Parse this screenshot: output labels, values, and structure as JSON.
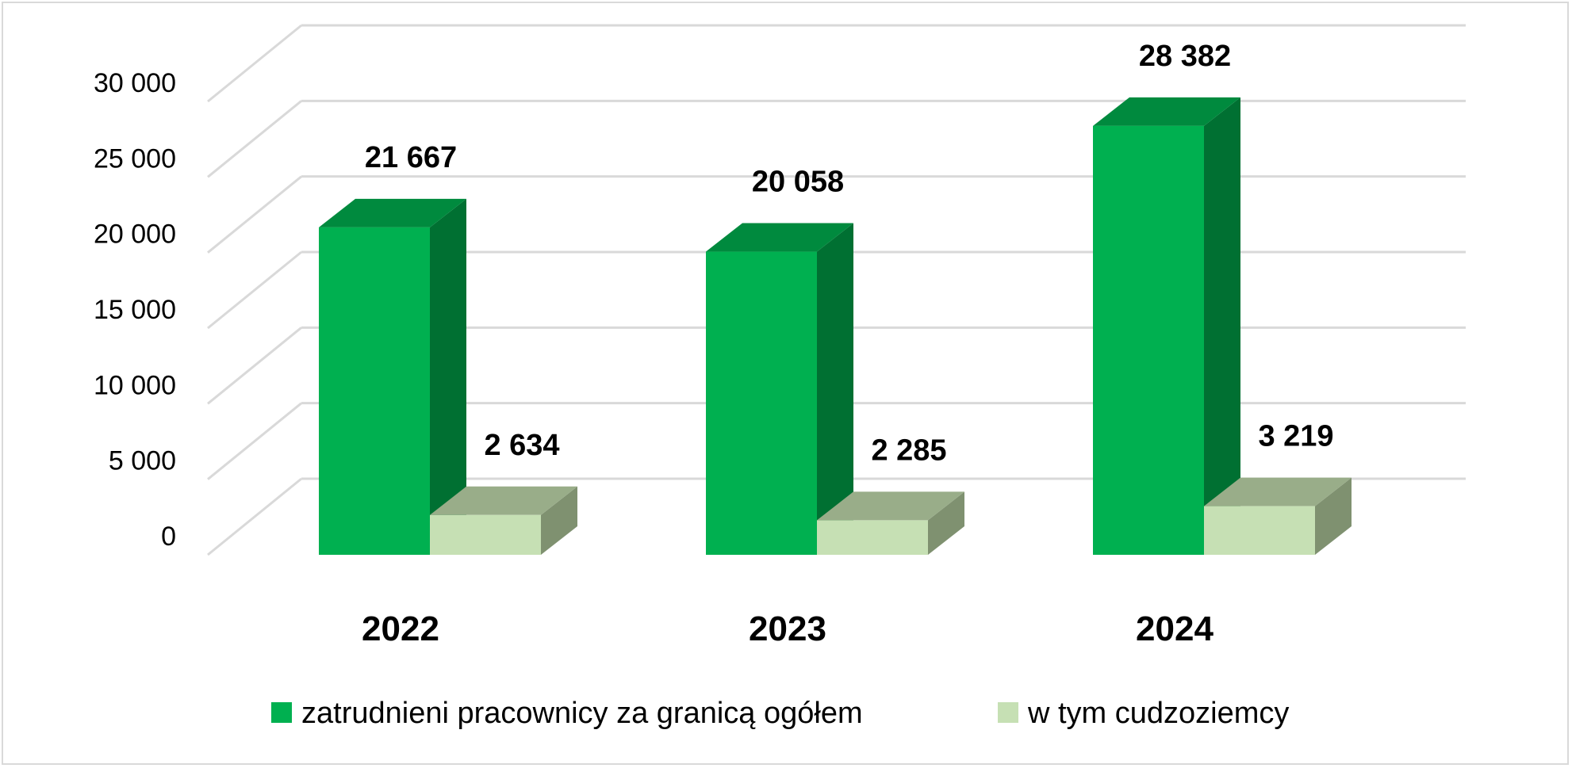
{
  "chart_data": {
    "type": "bar",
    "categories": [
      "2022",
      "2023",
      "2024"
    ],
    "series": [
      {
        "name": "zatrudnieni pracownicy za granicą ogółem",
        "values": [
          21667,
          20058,
          28382
        ],
        "labels": [
          "21 667",
          "20 058",
          "28 382"
        ],
        "color": "#00b050",
        "side_color": "#007032",
        "top_color": "#008a3e"
      },
      {
        "name": "w tym cudzoziemcy",
        "values": [
          2634,
          2285,
          3219
        ],
        "labels": [
          "2 634",
          "2 285",
          "3 219"
        ],
        "color": "#c6e0b4",
        "side_color": "#7f9170",
        "top_color": "#99ad89"
      }
    ],
    "y_ticks": [
      0,
      5000,
      10000,
      15000,
      20000,
      25000,
      30000
    ],
    "y_tick_labels": [
      "0",
      "5 000",
      "10 000",
      "15 000",
      "20 000",
      "25 000",
      "30 000"
    ],
    "ylim": [
      0,
      30000
    ],
    "grid": true,
    "gridline_color": "#d9d9d9",
    "legend_position": "bottom",
    "title": "",
    "xlabel": "",
    "ylabel": ""
  }
}
